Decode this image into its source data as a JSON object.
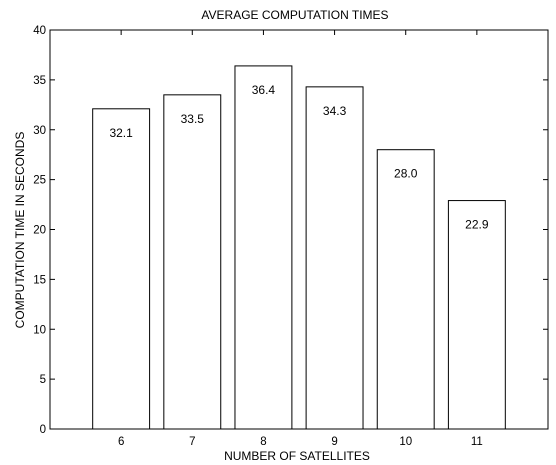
{
  "chart_data": {
    "type": "bar",
    "title": "AVERAGE COMPUTATION TIMES",
    "xlabel": "NUMBER OF SATELLITES",
    "ylabel": "COMPUTATION TIME IN SECONDS",
    "categories": [
      "6",
      "7",
      "8",
      "9",
      "10",
      "11"
    ],
    "values": [
      32.1,
      33.5,
      36.4,
      34.3,
      28.0,
      22.9
    ],
    "data_labels": [
      "32.1",
      "33.5",
      "36.4",
      "34.3",
      "28.0",
      "22.9"
    ],
    "xlim": [
      5,
      12
    ],
    "ylim": [
      0,
      40
    ],
    "yticks": [
      0,
      5,
      10,
      15,
      20,
      25,
      30,
      35,
      40
    ],
    "grid": false,
    "bar_fill": "#ffffff",
    "bar_stroke": "#000000"
  }
}
